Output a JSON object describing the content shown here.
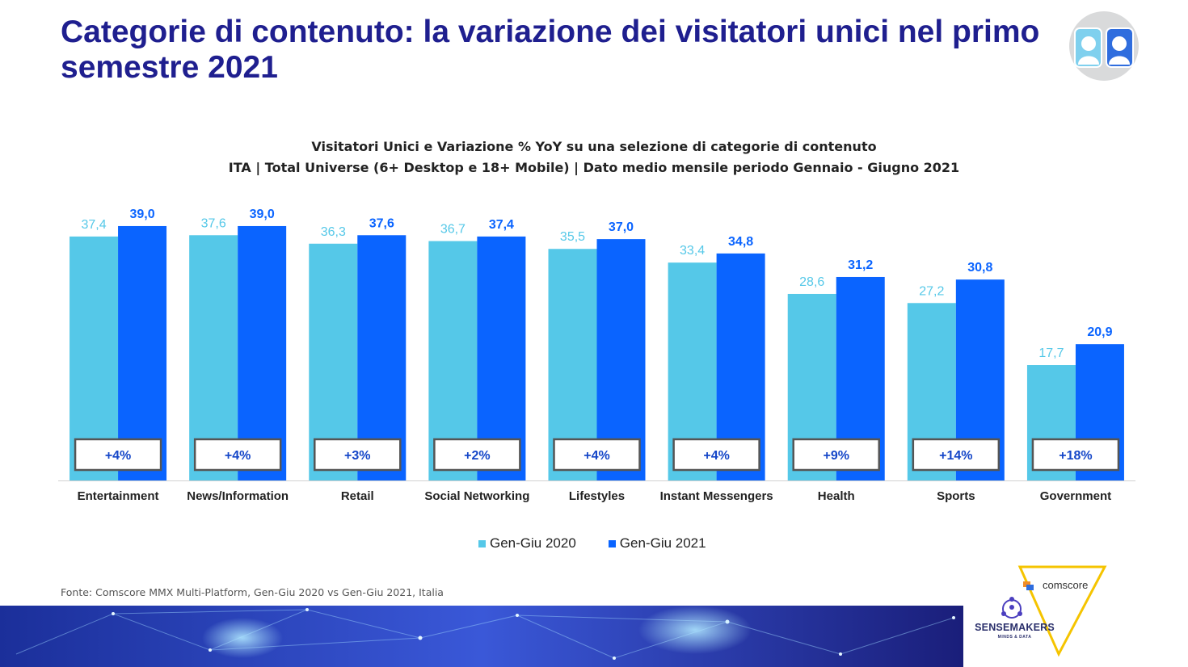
{
  "header": {
    "title": "Categorie di contenuto: la variazione dei visitatori unici nel primo semestre 2021"
  },
  "chart_data": {
    "type": "bar",
    "title": "Visitatori Unici e Variazione % YoY su una selezione di categorie di contenuto",
    "subtitle": "ITA | Total Universe (6+ Desktop e 18+ Mobile)  | Dato medio mensile periodo Gennaio - Giugno 2021",
    "categories": [
      "Entertainment",
      "News/Information",
      "Retail",
      "Social Networking",
      "Lifestyles",
      "Instant Messengers",
      "Health",
      "Sports",
      "Government"
    ],
    "series": [
      {
        "name": "Gen-Giu 2020",
        "color": "#55c8e8",
        "values": [
          37.4,
          37.6,
          36.3,
          36.7,
          35.5,
          33.4,
          28.6,
          27.2,
          17.7
        ],
        "labels": [
          "37,4",
          "37,6",
          "36,3",
          "36,7",
          "35,5",
          "33,4",
          "28,6",
          "27,2",
          "17,7"
        ]
      },
      {
        "name": "Gen-Giu 2021",
        "color": "#0a64ff",
        "values": [
          39.0,
          39.0,
          37.6,
          37.4,
          37.0,
          34.8,
          31.2,
          30.8,
          20.9
        ],
        "labels": [
          "39,0",
          "39,0",
          "37,6",
          "37,4",
          "37,0",
          "34,8",
          "31,2",
          "30,8",
          "20,9"
        ]
      }
    ],
    "yoy_change": [
      "+4%",
      "+4%",
      "+3%",
      "+2%",
      "+4%",
      "+4%",
      "+9%",
      "+14%",
      "+18%"
    ],
    "ylim": [
      0,
      45
    ],
    "grid": false,
    "legend_position": "bottom"
  },
  "legend": {
    "items": [
      {
        "label": "Gen-Giu 2020",
        "color": "#55c8e8"
      },
      {
        "label": "Gen-Giu 2021",
        "color": "#0a64ff"
      }
    ]
  },
  "footer": {
    "source": "Fonte: Comscore MMX Multi-Platform, Gen-Giu 2020 vs Gen-Giu 2021, Italia",
    "comscore": "comscore",
    "sensemakers": "SENSEMAKERS",
    "sensemakers_sub": "MINDS & DATA"
  },
  "icons": {
    "top_right": "people-icon",
    "logo_comscore": "comscore-logo-icon",
    "logo_sensemakers": "sensemakers-logo-icon"
  }
}
